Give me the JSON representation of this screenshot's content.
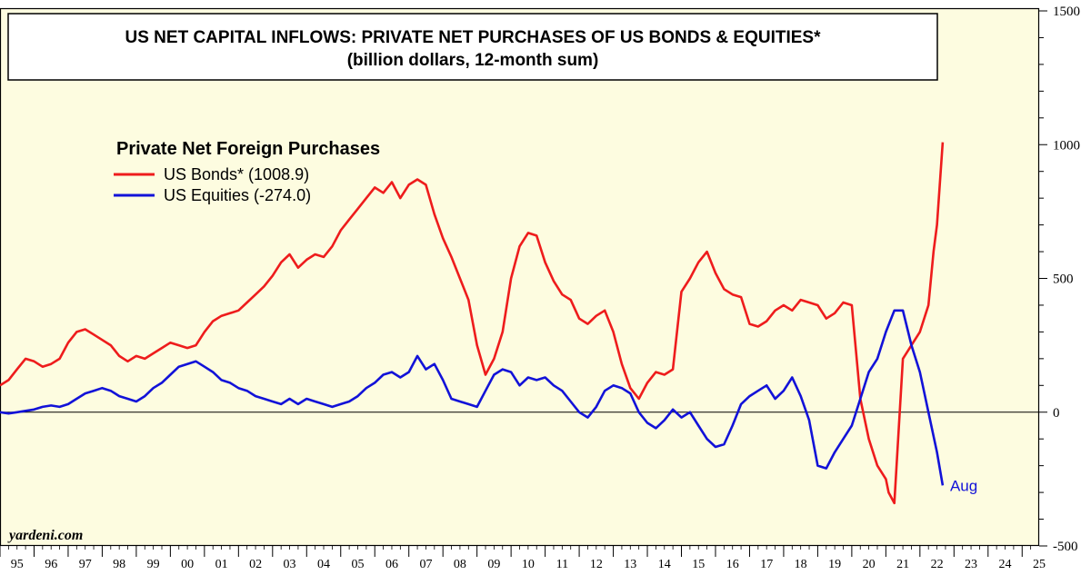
{
  "chart_data": {
    "type": "line",
    "title": "US NET CAPITAL INFLOWS: PRIVATE NET PURCHASES OF US BONDS & EQUITIES*",
    "subtitle": "(billion dollars, 12-month sum)",
    "legend_title": "Private Net Foreign Purchases",
    "legend_placement": "top-left",
    "source": "yardeni.com",
    "end_label": "Aug",
    "ylim": [
      -500,
      1500
    ],
    "y_ticks": [
      1500,
      1000,
      500,
      0,
      -500
    ],
    "xlim": [
      1995.0,
      2025.5
    ],
    "x_tick_labels": [
      "95",
      "96",
      "97",
      "98",
      "99",
      "00",
      "01",
      "02",
      "03",
      "04",
      "05",
      "06",
      "07",
      "08",
      "09",
      "10",
      "11",
      "12",
      "13",
      "14",
      "15",
      "16",
      "17",
      "18",
      "19",
      "20",
      "21",
      "22",
      "23",
      "24",
      "25"
    ],
    "zero_line": true,
    "grid": false,
    "colors": {
      "background": "#fdfce0",
      "bonds": "#ee1c1c",
      "equities": "#1212d8",
      "axis": "#000000"
    },
    "series": [
      {
        "name": "US Bonds* (1008.9)",
        "color": "#ee1c1c",
        "x": [
          1995.0,
          1995.25,
          1995.5,
          1995.75,
          1996.0,
          1996.25,
          1996.5,
          1996.75,
          1997.0,
          1997.25,
          1997.5,
          1997.75,
          1998.0,
          1998.25,
          1998.5,
          1998.75,
          1999.0,
          1999.25,
          1999.5,
          1999.75,
          2000.0,
          2000.25,
          2000.5,
          2000.75,
          2001.0,
          2001.25,
          2001.5,
          2001.75,
          2002.0,
          2002.25,
          2002.5,
          2002.75,
          2003.0,
          2003.25,
          2003.5,
          2003.75,
          2004.0,
          2004.25,
          2004.5,
          2004.75,
          2005.0,
          2005.25,
          2005.5,
          2005.75,
          2006.0,
          2006.25,
          2006.5,
          2006.75,
          2007.0,
          2007.25,
          2007.5,
          2007.75,
          2008.0,
          2008.25,
          2008.5,
          2008.75,
          2009.0,
          2009.25,
          2009.5,
          2009.75,
          2010.0,
          2010.25,
          2010.5,
          2010.75,
          2011.0,
          2011.25,
          2011.5,
          2011.75,
          2012.0,
          2012.25,
          2012.5,
          2012.75,
          2013.0,
          2013.25,
          2013.5,
          2013.75,
          2014.0,
          2014.25,
          2014.5,
          2014.75,
          2015.0,
          2015.25,
          2015.5,
          2015.75,
          2016.0,
          2016.25,
          2016.5,
          2016.75,
          2017.0,
          2017.25,
          2017.5,
          2017.75,
          2018.0,
          2018.25,
          2018.5,
          2018.75,
          2019.0,
          2019.25,
          2019.5,
          2019.75,
          2020.0,
          2020.25,
          2020.5,
          2020.75,
          2021.0,
          2021.08,
          2021.25,
          2021.5,
          2021.75,
          2022.0,
          2022.25,
          2022.4,
          2022.5,
          2022.67
        ],
        "values": [
          100,
          120,
          160,
          200,
          190,
          170,
          180,
          200,
          260,
          300,
          310,
          290,
          270,
          250,
          210,
          190,
          210,
          200,
          220,
          240,
          260,
          250,
          240,
          250,
          300,
          340,
          360,
          370,
          380,
          410,
          440,
          470,
          510,
          560,
          590,
          540,
          570,
          590,
          580,
          620,
          680,
          720,
          760,
          800,
          840,
          820,
          860,
          800,
          850,
          870,
          850,
          740,
          650,
          580,
          500,
          420,
          250,
          140,
          200,
          300,
          500,
          620,
          670,
          660,
          560,
          490,
          440,
          420,
          350,
          330,
          360,
          380,
          300,
          180,
          90,
          50,
          110,
          150,
          140,
          160,
          450,
          500,
          560,
          600,
          520,
          460,
          440,
          430,
          330,
          320,
          340,
          380,
          400,
          380,
          420,
          410,
          400,
          350,
          370,
          410,
          400,
          50,
          -100,
          -200,
          -250,
          -300,
          -340,
          200,
          250,
          300,
          400,
          600,
          700,
          1008.9
        ]
      },
      {
        "name": "US Equities (-274.0)",
        "color": "#1212d8",
        "x": [
          1995.0,
          1995.25,
          1995.5,
          1995.75,
          1996.0,
          1996.25,
          1996.5,
          1996.75,
          1997.0,
          1997.25,
          1997.5,
          1997.75,
          1998.0,
          1998.25,
          1998.5,
          1998.75,
          1999.0,
          1999.25,
          1999.5,
          1999.75,
          2000.0,
          2000.25,
          2000.5,
          2000.75,
          2001.0,
          2001.25,
          2001.5,
          2001.75,
          2002.0,
          2002.25,
          2002.5,
          2002.75,
          2003.0,
          2003.25,
          2003.5,
          2003.75,
          2004.0,
          2004.25,
          2004.5,
          2004.75,
          2005.0,
          2005.25,
          2005.5,
          2005.75,
          2006.0,
          2006.25,
          2006.5,
          2006.75,
          2007.0,
          2007.25,
          2007.5,
          2007.75,
          2008.0,
          2008.25,
          2008.5,
          2008.75,
          2009.0,
          2009.25,
          2009.5,
          2009.75,
          2010.0,
          2010.25,
          2010.5,
          2010.75,
          2011.0,
          2011.25,
          2011.5,
          2011.75,
          2012.0,
          2012.25,
          2012.5,
          2012.75,
          2013.0,
          2013.25,
          2013.5,
          2013.75,
          2014.0,
          2014.25,
          2014.5,
          2014.75,
          2015.0,
          2015.25,
          2015.5,
          2015.75,
          2016.0,
          2016.25,
          2016.5,
          2016.75,
          2017.0,
          2017.25,
          2017.5,
          2017.75,
          2018.0,
          2018.25,
          2018.5,
          2018.75,
          2019.0,
          2019.25,
          2019.5,
          2019.75,
          2020.0,
          2020.25,
          2020.5,
          2020.75,
          2021.0,
          2021.25,
          2021.5,
          2021.75,
          2022.0,
          2022.25,
          2022.5,
          2022.67
        ],
        "values": [
          0,
          -5,
          0,
          5,
          10,
          20,
          25,
          20,
          30,
          50,
          70,
          80,
          90,
          80,
          60,
          50,
          40,
          60,
          90,
          110,
          140,
          170,
          180,
          190,
          170,
          150,
          120,
          110,
          90,
          80,
          60,
          50,
          40,
          30,
          50,
          30,
          50,
          40,
          30,
          20,
          30,
          40,
          60,
          90,
          110,
          140,
          150,
          130,
          150,
          210,
          160,
          180,
          120,
          50,
          40,
          30,
          20,
          80,
          140,
          160,
          150,
          100,
          130,
          120,
          130,
          100,
          80,
          40,
          0,
          -20,
          20,
          80,
          100,
          90,
          70,
          0,
          -40,
          -60,
          -30,
          10,
          -20,
          0,
          -50,
          -100,
          -130,
          -120,
          -50,
          30,
          60,
          80,
          100,
          50,
          80,
          130,
          60,
          -30,
          -200,
          -210,
          -150,
          -100,
          -50,
          50,
          150,
          200,
          300,
          380,
          380,
          250,
          150,
          0,
          -150,
          -274
        ]
      }
    ]
  }
}
